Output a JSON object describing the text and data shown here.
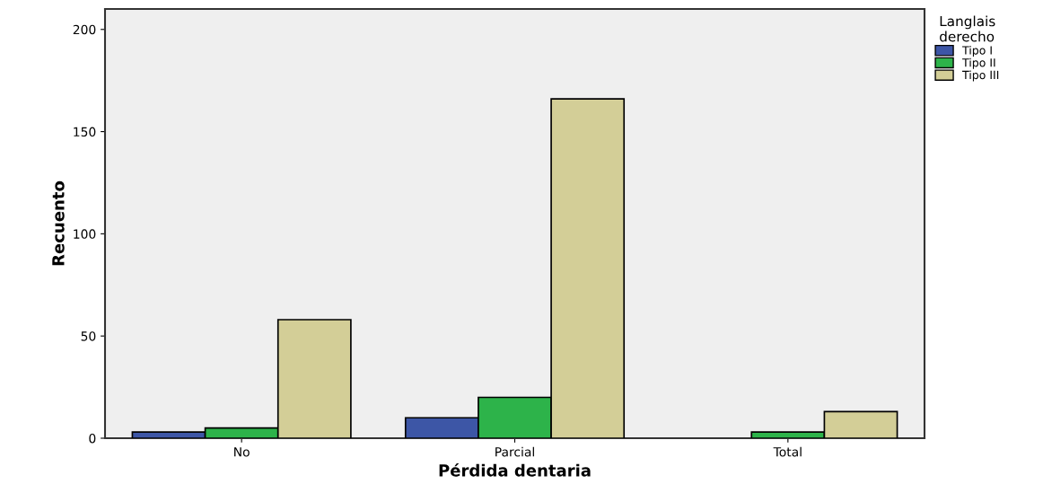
{
  "chart_data": {
    "type": "bar",
    "xlabel": "Pérdida dentaria",
    "ylabel": "Recuento",
    "legend_title": "Langlais\nderecho",
    "categories": [
      "No",
      "Parcial",
      "Total"
    ],
    "series": [
      {
        "name": "Tipo I",
        "color": "#3d56a6",
        "values": [
          3,
          10,
          0
        ]
      },
      {
        "name": "Tipo II",
        "color": "#2db34a",
        "values": [
          5,
          20,
          3
        ]
      },
      {
        "name": "Tipo III",
        "color": "#d3ce97",
        "values": [
          58,
          166,
          13
        ]
      }
    ],
    "ylim": [
      0,
      210
    ],
    "yticks": [
      0,
      50,
      100,
      150,
      200
    ],
    "grid": false,
    "legend": "right"
  }
}
